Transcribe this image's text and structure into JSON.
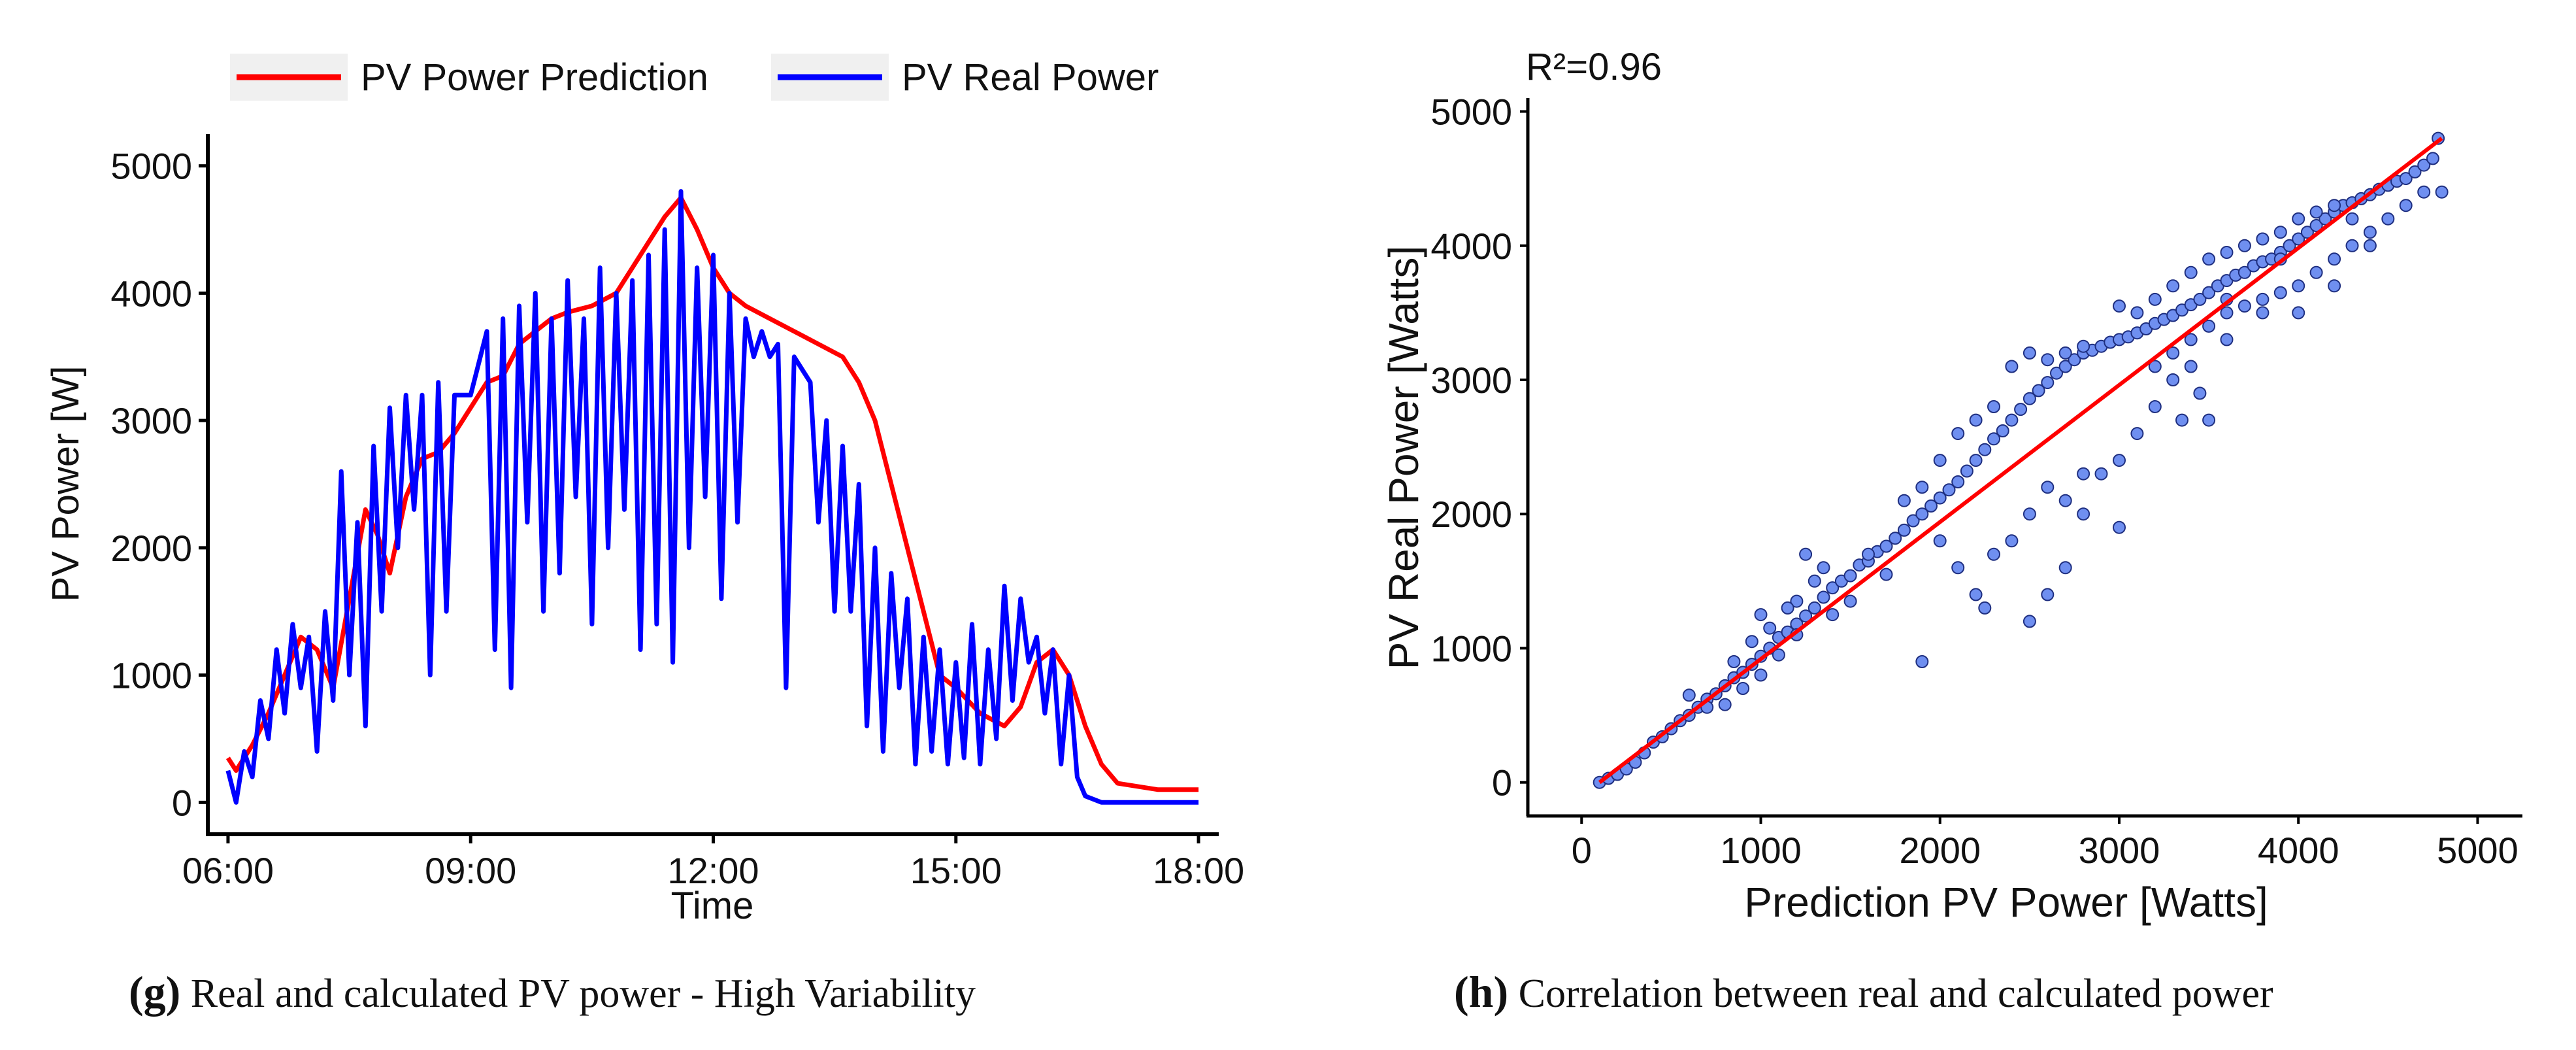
{
  "chart_data": [
    {
      "panel": "g",
      "type": "line",
      "xlabel": "Time",
      "ylabel": "PV Power [W]",
      "x_ticks": [
        "06:00",
        "09:00",
        "12:00",
        "15:00",
        "18:00"
      ],
      "x_tick_hours": [
        6,
        9,
        12,
        15,
        18
      ],
      "xlim": [
        5.75,
        18.25
      ],
      "y_ticks": [
        0,
        1000,
        2000,
        3000,
        4000,
        5000
      ],
      "ylim": [
        -250,
        5250
      ],
      "legend_position": "top",
      "series": [
        {
          "name": "PV Power Prediction",
          "color": "#ff0000",
          "x": [
            6.0,
            6.1,
            6.3,
            6.5,
            6.7,
            6.9,
            7.1,
            7.3,
            7.5,
            7.7,
            7.85,
            8.0,
            8.2,
            8.4,
            8.6,
            8.8,
            9.0,
            9.2,
            9.4,
            9.6,
            9.8,
            10.0,
            10.2,
            10.5,
            10.8,
            11.0,
            11.2,
            11.4,
            11.6,
            11.8,
            12.0,
            12.2,
            12.4,
            12.7,
            13.0,
            13.3,
            13.6,
            13.8,
            14.0,
            14.2,
            14.4,
            14.6,
            14.8,
            15.0,
            15.3,
            15.6,
            15.8,
            16.0,
            16.2,
            16.4,
            16.6,
            16.8,
            17.0,
            17.5,
            18.0
          ],
          "values": [
            350,
            250,
            450,
            700,
            1000,
            1300,
            1200,
            900,
            1600,
            2300,
            2100,
            1800,
            2400,
            2700,
            2750,
            2900,
            3100,
            3300,
            3350,
            3600,
            3700,
            3800,
            3850,
            3900,
            4000,
            4200,
            4400,
            4600,
            4750,
            4500,
            4200,
            4000,
            3900,
            3800,
            3700,
            3600,
            3500,
            3300,
            3000,
            2500,
            2000,
            1500,
            1000,
            900,
            700,
            600,
            750,
            1100,
            1200,
            1000,
            600,
            300,
            150,
            100,
            100
          ]
        },
        {
          "name": "PV Real Power",
          "color": "#0000ff",
          "x": [
            6.0,
            6.1,
            6.2,
            6.3,
            6.4,
            6.5,
            6.6,
            6.7,
            6.8,
            6.9,
            7.0,
            7.1,
            7.2,
            7.3,
            7.4,
            7.5,
            7.6,
            7.7,
            7.8,
            7.9,
            8.0,
            8.1,
            8.2,
            8.3,
            8.4,
            8.5,
            8.6,
            8.7,
            8.8,
            9.0,
            9.2,
            9.3,
            9.4,
            9.5,
            9.6,
            9.7,
            9.8,
            9.9,
            10.0,
            10.1,
            10.2,
            10.3,
            10.4,
            10.5,
            10.6,
            10.7,
            10.8,
            10.9,
            11.0,
            11.1,
            11.2,
            11.3,
            11.4,
            11.5,
            11.6,
            11.7,
            11.8,
            11.9,
            12.0,
            12.1,
            12.2,
            12.3,
            12.4,
            12.5,
            12.6,
            12.7,
            12.8,
            12.9,
            13.0,
            13.1,
            13.2,
            13.3,
            13.4,
            13.5,
            13.6,
            13.7,
            13.8,
            13.9,
            14.0,
            14.1,
            14.2,
            14.3,
            14.4,
            14.5,
            14.6,
            14.7,
            14.8,
            14.9,
            15.0,
            15.1,
            15.2,
            15.3,
            15.4,
            15.5,
            15.6,
            15.7,
            15.8,
            15.9,
            16.0,
            16.1,
            16.2,
            16.3,
            16.4,
            16.5,
            16.6,
            16.8,
            17.0,
            17.5,
            18.0
          ],
          "values": [
            250,
            0,
            400,
            200,
            800,
            500,
            1200,
            700,
            1400,
            900,
            1300,
            400,
            1500,
            800,
            2600,
            1000,
            2200,
            600,
            2800,
            1500,
            3100,
            2000,
            3200,
            2300,
            3200,
            1000,
            3300,
            1500,
            3200,
            3200,
            3700,
            1200,
            3800,
            900,
            3900,
            2200,
            4000,
            1500,
            3800,
            1800,
            4100,
            2400,
            3800,
            1400,
            4200,
            2000,
            4000,
            2300,
            4100,
            1200,
            4300,
            1400,
            4500,
            1100,
            4800,
            2000,
            4200,
            2400,
            4300,
            1600,
            4000,
            2200,
            3800,
            3500,
            3700,
            3500,
            3600,
            900,
            3500,
            3400,
            3300,
            2200,
            3000,
            1500,
            2800,
            1500,
            2500,
            600,
            2000,
            400,
            1800,
            900,
            1600,
            300,
            1300,
            400,
            1200,
            300,
            1100,
            350,
            1400,
            300,
            1200,
            500,
            1700,
            800,
            1600,
            1100,
            1300,
            700,
            1200,
            300,
            1000,
            200,
            50,
            0,
            0,
            0,
            0
          ]
        }
      ]
    },
    {
      "panel": "h",
      "type": "scatter",
      "xlabel": "Prediction PV Power [Watts]",
      "ylabel": "PV Real Power  [Watts]",
      "annotation": "R²=0.96",
      "x_ticks": [
        0,
        1000,
        2000,
        3000,
        4000,
        5000
      ],
      "y_ticks": [
        0,
        1000,
        2000,
        3000,
        4000,
        5000
      ],
      "xlim": [
        -300,
        5250
      ],
      "ylim": [
        -250,
        5100
      ],
      "point_color": "#6f8ff0",
      "fit_line": {
        "color": "#ff0000",
        "x": [
          100,
          4800
        ],
        "y": [
          0,
          4800
        ]
      },
      "points": [
        [
          100,
          0
        ],
        [
          150,
          30
        ],
        [
          200,
          60
        ],
        [
          250,
          100
        ],
        [
          300,
          150
        ],
        [
          350,
          220
        ],
        [
          400,
          300
        ],
        [
          450,
          340
        ],
        [
          500,
          400
        ],
        [
          550,
          460
        ],
        [
          600,
          500
        ],
        [
          650,
          560
        ],
        [
          700,
          620
        ],
        [
          750,
          660
        ],
        [
          800,
          720
        ],
        [
          850,
          780
        ],
        [
          900,
          820
        ],
        [
          950,
          880
        ],
        [
          1000,
          940
        ],
        [
          1050,
          1000
        ],
        [
          1100,
          1080
        ],
        [
          1150,
          1120
        ],
        [
          1200,
          1180
        ],
        [
          1250,
          1240
        ],
        [
          1300,
          1300
        ],
        [
          1350,
          1380
        ],
        [
          1400,
          1450
        ],
        [
          1450,
          1500
        ],
        [
          1500,
          1540
        ],
        [
          1550,
          1620
        ],
        [
          1600,
          1650
        ],
        [
          1650,
          1720
        ],
        [
          1700,
          1760
        ],
        [
          1750,
          1820
        ],
        [
          1800,
          1880
        ],
        [
          1850,
          1950
        ],
        [
          1900,
          2000
        ],
        [
          1950,
          2060
        ],
        [
          2000,
          2120
        ],
        [
          2050,
          2180
        ],
        [
          2100,
          2240
        ],
        [
          2150,
          2320
        ],
        [
          2200,
          2400
        ],
        [
          2250,
          2480
        ],
        [
          2300,
          2560
        ],
        [
          2350,
          2620
        ],
        [
          2400,
          2700
        ],
        [
          2450,
          2780
        ],
        [
          2500,
          2860
        ],
        [
          2550,
          2920
        ],
        [
          2600,
          2980
        ],
        [
          2650,
          3050
        ],
        [
          2700,
          3100
        ],
        [
          2750,
          3150
        ],
        [
          2800,
          3200
        ],
        [
          2850,
          3220
        ],
        [
          2900,
          3250
        ],
        [
          2950,
          3280
        ],
        [
          3000,
          3300
        ],
        [
          3050,
          3320
        ],
        [
          3100,
          3350
        ],
        [
          3150,
          3380
        ],
        [
          3200,
          3420
        ],
        [
          3250,
          3450
        ],
        [
          3300,
          3480
        ],
        [
          3350,
          3520
        ],
        [
          3400,
          3560
        ],
        [
          3450,
          3600
        ],
        [
          3500,
          3650
        ],
        [
          3550,
          3700
        ],
        [
          3600,
          3740
        ],
        [
          3650,
          3780
        ],
        [
          3700,
          3800
        ],
        [
          3750,
          3850
        ],
        [
          3800,
          3880
        ],
        [
          3850,
          3900
        ],
        [
          3900,
          3950
        ],
        [
          3950,
          4000
        ],
        [
          4000,
          4050
        ],
        [
          4050,
          4100
        ],
        [
          4100,
          4150
        ],
        [
          4150,
          4200
        ],
        [
          4200,
          4250
        ],
        [
          4250,
          4300
        ],
        [
          4300,
          4320
        ],
        [
          4350,
          4350
        ],
        [
          4400,
          4380
        ],
        [
          4450,
          4420
        ],
        [
          4500,
          4450
        ],
        [
          4550,
          4480
        ],
        [
          4600,
          4500
        ],
        [
          4650,
          4550
        ],
        [
          4700,
          4600
        ],
        [
          4750,
          4650
        ],
        [
          4780,
          4800
        ],
        [
          4800,
          4400
        ],
        [
          600,
          650
        ],
        [
          700,
          560
        ],
        [
          800,
          580
        ],
        [
          900,
          700
        ],
        [
          1000,
          800
        ],
        [
          1100,
          950
        ],
        [
          1200,
          1350
        ],
        [
          1300,
          1500
        ],
        [
          1250,
          1700
        ],
        [
          1350,
          1600
        ],
        [
          1150,
          1300
        ],
        [
          1050,
          1150
        ],
        [
          950,
          1050
        ],
        [
          850,
          900
        ],
        [
          1000,
          1250
        ],
        [
          1200,
          1100
        ],
        [
          1400,
          1250
        ],
        [
          1500,
          1350
        ],
        [
          1600,
          1700
        ],
        [
          1700,
          1550
        ],
        [
          1800,
          2100
        ],
        [
          1900,
          2200
        ],
        [
          2000,
          2400
        ],
        [
          2100,
          2600
        ],
        [
          2200,
          2700
        ],
        [
          2300,
          2800
        ],
        [
          2400,
          3100
        ],
        [
          2500,
          3200
        ],
        [
          2600,
          3150
        ],
        [
          2700,
          3200
        ],
        [
          2800,
          3250
        ],
        [
          3000,
          3550
        ],
        [
          3100,
          3500
        ],
        [
          3200,
          3600
        ],
        [
          3300,
          3700
        ],
        [
          3400,
          3800
        ],
        [
          3500,
          3900
        ],
        [
          3600,
          3950
        ],
        [
          3700,
          4000
        ],
        [
          3800,
          4050
        ],
        [
          3900,
          4100
        ],
        [
          4000,
          4200
        ],
        [
          4100,
          4250
        ],
        [
          4200,
          4300
        ],
        [
          3300,
          3200
        ],
        [
          3400,
          3300
        ],
        [
          3500,
          3400
        ],
        [
          3600,
          3500
        ],
        [
          3700,
          3550
        ],
        [
          3800,
          3600
        ],
        [
          3900,
          3650
        ],
        [
          4000,
          3700
        ],
        [
          4100,
          3800
        ],
        [
          4200,
          3900
        ],
        [
          4300,
          4000
        ],
        [
          4400,
          4100
        ],
        [
          4500,
          4200
        ],
        [
          3450,
          2900
        ],
        [
          3500,
          2700
        ],
        [
          3350,
          2700
        ],
        [
          3200,
          2800
        ],
        [
          3100,
          2600
        ],
        [
          3000,
          2400
        ],
        [
          2900,
          2300
        ],
        [
          2800,
          2000
        ],
        [
          2700,
          2100
        ],
        [
          2600,
          2200
        ],
        [
          2500,
          2000
        ],
        [
          2400,
          1800
        ],
        [
          2300,
          1700
        ],
        [
          2200,
          1400
        ],
        [
          2100,
          1600
        ],
        [
          2000,
          1800
        ],
        [
          1900,
          900
        ],
        [
          2500,
          1200
        ],
        [
          2700,
          1600
        ],
        [
          3000,
          1900
        ],
        [
          2250,
          1300
        ],
        [
          3300,
          3000
        ],
        [
          3400,
          3100
        ],
        [
          3600,
          3300
        ],
        [
          3800,
          3500
        ],
        [
          4000,
          3500
        ],
        [
          4200,
          3700
        ],
        [
          4400,
          4000
        ],
        [
          4600,
          4300
        ],
        [
          4700,
          4400
        ],
        [
          2600,
          1400
        ],
        [
          2800,
          2300
        ],
        [
          3200,
          3100
        ],
        [
          3600,
          3600
        ],
        [
          3900,
          3900
        ],
        [
          4300,
          4200
        ]
      ]
    }
  ],
  "captions": {
    "g": {
      "letter": "(g)",
      "text": "Real and calculated PV power - High Variability"
    },
    "h": {
      "letter": "(h)",
      "text": "Correlation between real and calculated power"
    }
  }
}
